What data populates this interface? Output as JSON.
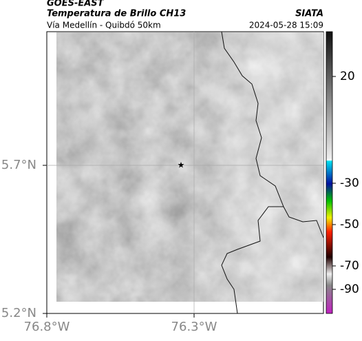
{
  "header": {
    "satellite": "GOES-EAST",
    "product": "Temperatura de Brillo CH13",
    "source": "SIATA",
    "route": "Vía Medellín - Quibdó 50km",
    "timestamp": "2024-05-28 15:09"
  },
  "map": {
    "lat_labels": [
      "5.7°N",
      "5.2°N"
    ],
    "lon_labels": [
      "76.8°W",
      "76.3°W"
    ]
  },
  "colorbar": {
    "ticks": [
      20,
      -30,
      -50,
      -70,
      -90
    ]
  }
}
